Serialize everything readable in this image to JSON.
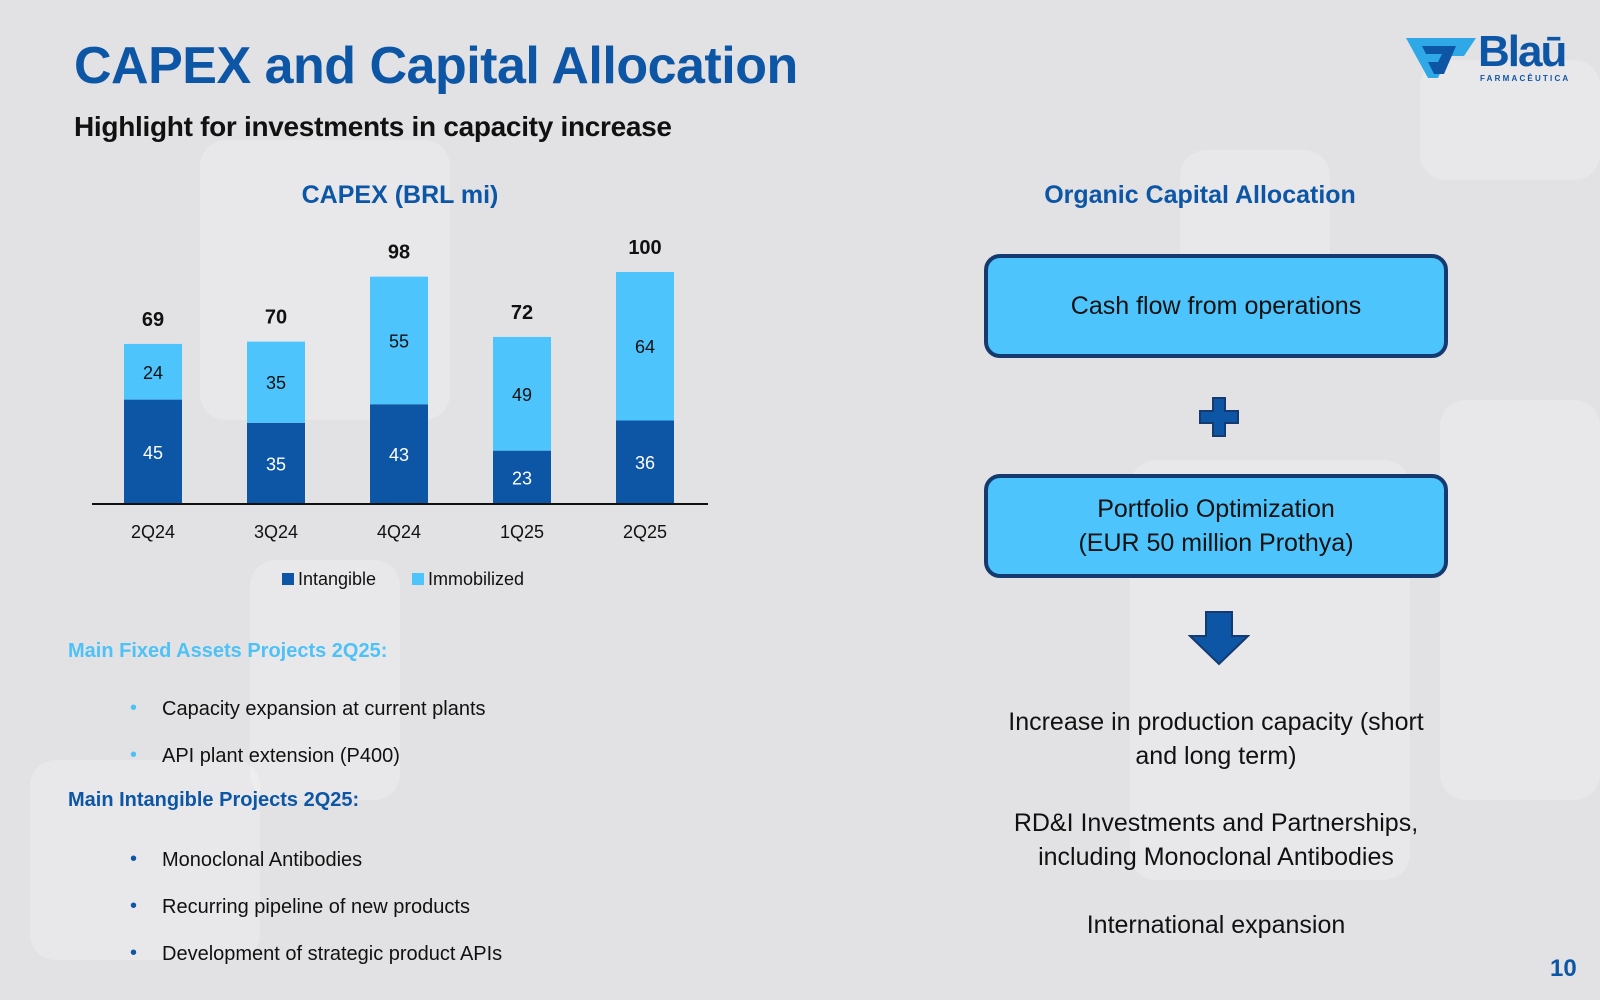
{
  "slide": {
    "title": "CAPEX and Capital Allocation",
    "subtitle": "Highlight for investments in capacity increase",
    "page_number": "10"
  },
  "logo": {
    "word": "Blaū",
    "sub": "FARMACÊUTICA",
    "icon": "blau-logo-icon"
  },
  "colors": {
    "title_blue": "#0d56a6",
    "intangible": "#0d56a6",
    "immobilized": "#4dc4fb",
    "box_border": "#153a70",
    "light_heading": "#4ec2f7"
  },
  "chart_data": {
    "type": "bar",
    "stacked": true,
    "title": "CAPEX (BRL mi)",
    "categories": [
      "2Q24",
      "3Q24",
      "4Q24",
      "1Q25",
      "2Q25"
    ],
    "series": [
      {
        "name": "Intangible",
        "values": [
          45,
          35,
          43,
          23,
          36
        ],
        "color": "#0d56a6"
      },
      {
        "name": "Immobilized",
        "values": [
          24,
          35,
          55,
          49,
          64
        ],
        "color": "#4dc4fb"
      }
    ],
    "totals": [
      69,
      70,
      98,
      72,
      100
    ],
    "legend": "bottom",
    "grid": false,
    "ylim": [
      0,
      100
    ]
  },
  "fixed_assets": {
    "heading": "Main Fixed Assets Projects 2Q25:",
    "items": [
      "Capacity expansion at current plants",
      "API plant extension (P400)"
    ]
  },
  "intangible_projects": {
    "heading": "Main Intangible Projects 2Q25:",
    "items": [
      "Monoclonal Antibodies",
      "Recurring pipeline of new products",
      "Development of strategic product APIs"
    ]
  },
  "allocation": {
    "title": "Organic Capital Allocation",
    "box1": "Cash flow from operations",
    "box2_line1": "Portfolio Optimization",
    "box2_line2": "(EUR 50 million Prothya)",
    "plus_icon": "plus-icon",
    "arrow_icon": "arrow-down-icon",
    "outcome1_line1": "Increase in production capacity (short",
    "outcome1_line2": "and long term)",
    "outcome2_line1": "RD&I Investments and Partnerships,",
    "outcome2_line2": "including Monoclonal Antibodies",
    "outcome3": "International expansion"
  }
}
